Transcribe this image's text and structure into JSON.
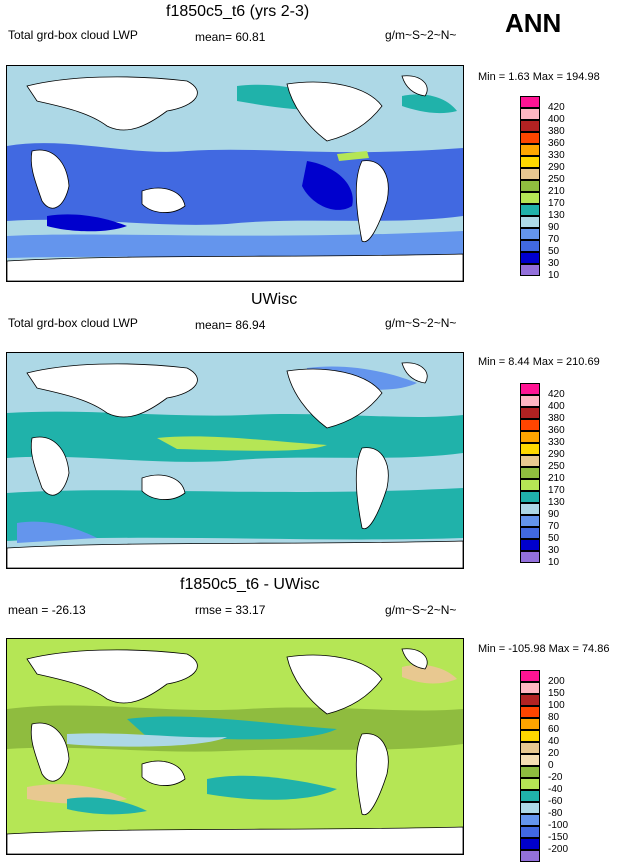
{
  "season": "ANN",
  "panels": [
    {
      "title": "f1850c5_t6 (yrs 2-3)",
      "left_label": "Total grd-box cloud LWP",
      "center_label": "mean=  60.81",
      "units": "g/m~S~2~N~",
      "minmax": "Min =   1.63 Max = 194.98",
      "scheme": "abs",
      "cb_labels": [
        "420",
        "400",
        "380",
        "360",
        "330",
        "290",
        "250",
        "210",
        "170",
        "130",
        "90",
        "70",
        "50",
        "30",
        "10"
      ],
      "cb_colors": [
        "#ff1493",
        "#ffb6c1",
        "#b22222",
        "#ff4500",
        "#ffa500",
        "#ffd700",
        "#e8c890",
        "#8fbc3f",
        "#b5e655",
        "#20b2aa",
        "#add8e6",
        "#6495ed",
        "#4169e1",
        "#0000cd",
        "#9370db"
      ]
    },
    {
      "title": "UWisc",
      "left_label": "Total grd-box cloud LWP",
      "center_label": "mean=  86.94",
      "units": "g/m~S~2~N~",
      "minmax": "Min =   8.44 Max = 210.69",
      "scheme": "abs",
      "cb_labels": [
        "420",
        "400",
        "380",
        "360",
        "330",
        "290",
        "250",
        "210",
        "170",
        "130",
        "90",
        "70",
        "50",
        "30",
        "10"
      ],
      "cb_colors": [
        "#ff1493",
        "#ffb6c1",
        "#b22222",
        "#ff4500",
        "#ffa500",
        "#ffd700",
        "#e8c890",
        "#8fbc3f",
        "#b5e655",
        "#20b2aa",
        "#add8e6",
        "#6495ed",
        "#4169e1",
        "#0000cd",
        "#9370db"
      ]
    },
    {
      "title": "f1850c5_t6 - UWisc",
      "left_label": "mean = -26.13",
      "center_label": "rmse =  33.17",
      "units": "g/m~S~2~N~",
      "minmax": "Min = -105.98 Max =  74.86",
      "scheme": "diff",
      "cb_labels": [
        "200",
        "150",
        "100",
        "80",
        "60",
        "40",
        "20",
        "0",
        "-20",
        "-40",
        "-60",
        "-80",
        "-100",
        "-150",
        "-200"
      ],
      "cb_colors": [
        "#ff1493",
        "#ffb6c1",
        "#b22222",
        "#ff4500",
        "#ffa500",
        "#ffd700",
        "#e8c890",
        "#f5deb3",
        "#8fbc3f",
        "#b5e655",
        "#20b2aa",
        "#add8e6",
        "#6495ed",
        "#4169e1",
        "#0000cd",
        "#9370db"
      ]
    }
  ]
}
